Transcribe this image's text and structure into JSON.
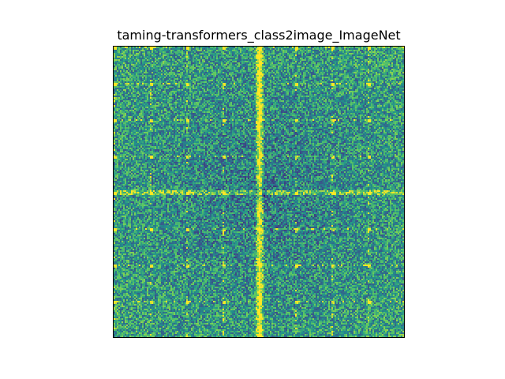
{
  "chart_data": {
    "type": "heatmap",
    "title": "taming-transformers_class2image_ImageNet",
    "xlabel": "",
    "ylabel": "",
    "axis_ticks_visible": false,
    "colormap": "viridis",
    "colormap_stops": [
      "#440154",
      "#3b528b",
      "#21918c",
      "#5ec962",
      "#fde725"
    ],
    "description_of_pattern": "2D Fourier spectrum: bright vertical line through center, weaker horizontal line, dark spot at the center, periodic bright spikes on a regular grid",
    "grid_resolution": 184,
    "normalized_value_range": [
      0,
      1
    ]
  }
}
